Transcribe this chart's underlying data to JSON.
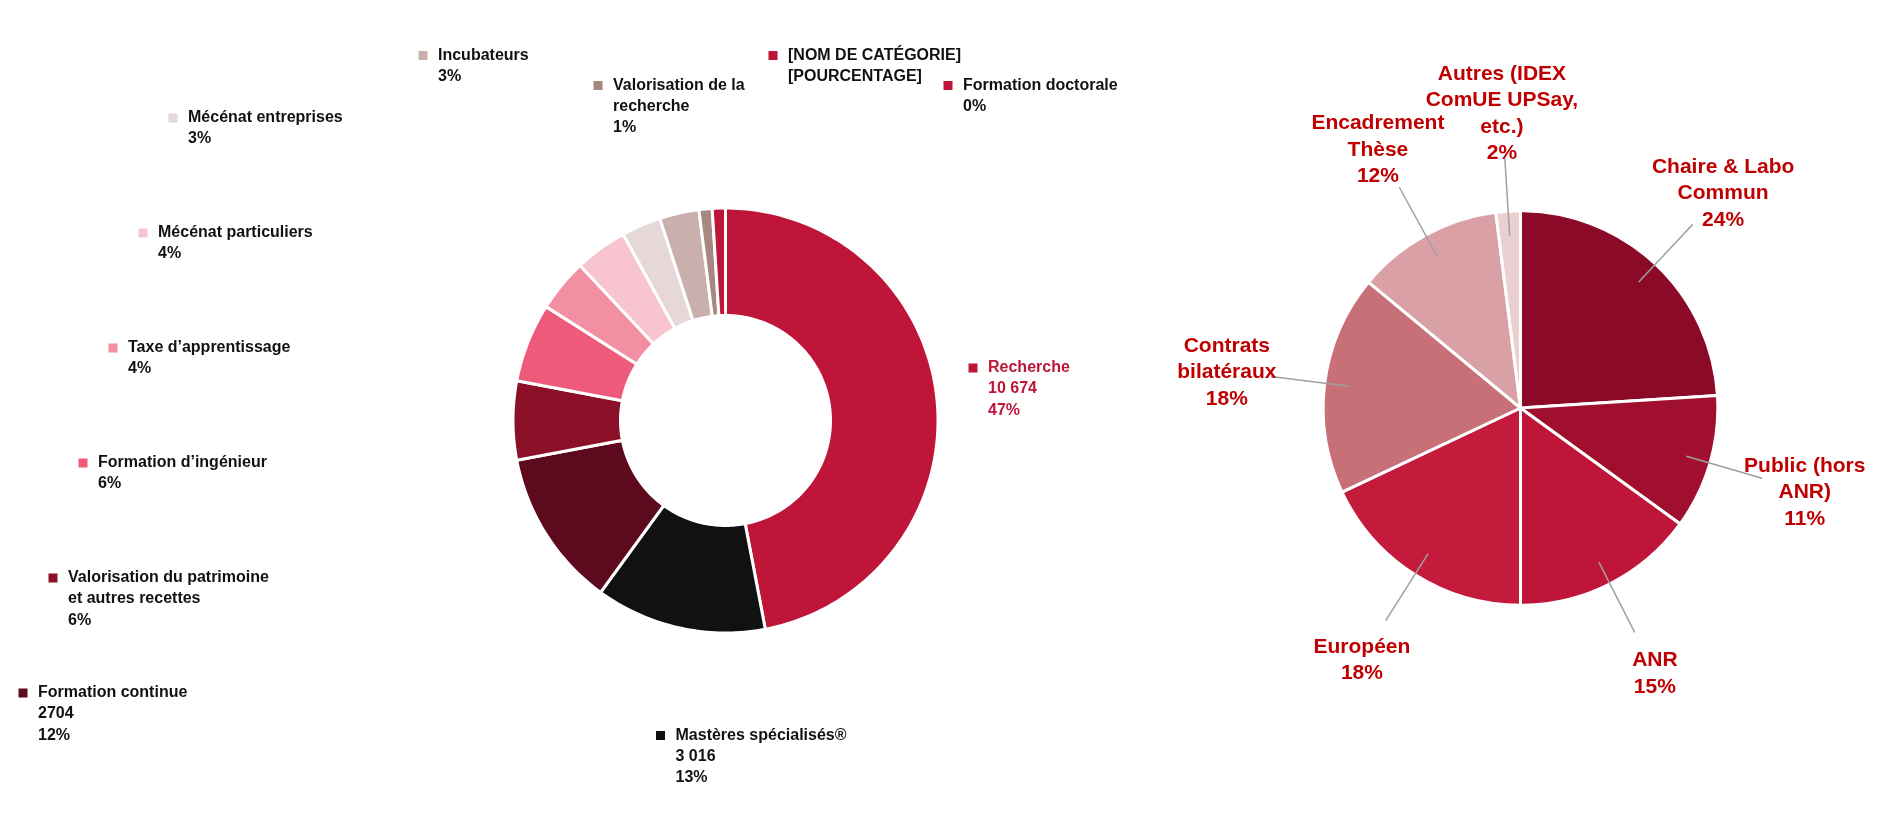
{
  "chart_data": [
    {
      "type": "donut",
      "categories": [
        "Recherche",
        "Mastères spécialisés®",
        "Formation continue",
        "Valorisation du patrimoine et autres recettes",
        "Formation d’ingénieur",
        "Taxe d’apprentissage",
        "Mécénat particuliers",
        "Mécénat entreprises",
        "Incubateurs",
        "Valorisation de la recherche",
        "[NOM DE CATÉGORIE]",
        "Formation doctorale"
      ],
      "values": [
        47,
        13,
        12,
        6,
        6,
        4,
        4,
        3,
        3,
        1,
        1,
        0
      ],
      "value_labels": [
        "10 674\n47%",
        "3 016\n13%",
        "2704\n12%",
        "6%",
        "6%",
        "4%",
        "4%",
        "3%",
        "3%",
        "1%",
        "[POURCENTAGE]",
        "0%"
      ],
      "colors": [
        "#be1538",
        "#111111",
        "#5e0a1e",
        "#8b1028",
        "#ee5a7a",
        "#f28fa3",
        "#f7c4cf",
        "#e6d8d8",
        "#c9b0ac",
        "#a88682",
        "#be1538",
        "#be1538"
      ],
      "legend": "left"
    },
    {
      "type": "pie",
      "categories": [
        "Chaire & Labo Commun",
        "Public (hors ANR)",
        "ANR",
        "Européen",
        "Contrats bilatéraux",
        "Encadrement Thèse",
        "Autres (IDEX ComUE UPSay, etc.)"
      ],
      "values": [
        24,
        11,
        15,
        18,
        18,
        12,
        2
      ],
      "colors": [
        "#8b0a28",
        "#a0102e",
        "#be1538",
        "#c41a3c",
        "#c87078",
        "#d9a0a5",
        "#ead0d0"
      ],
      "value_labels": [
        "24%",
        "11%",
        "15%",
        "18%",
        "18%",
        "12%",
        "2%"
      ]
    }
  ]
}
